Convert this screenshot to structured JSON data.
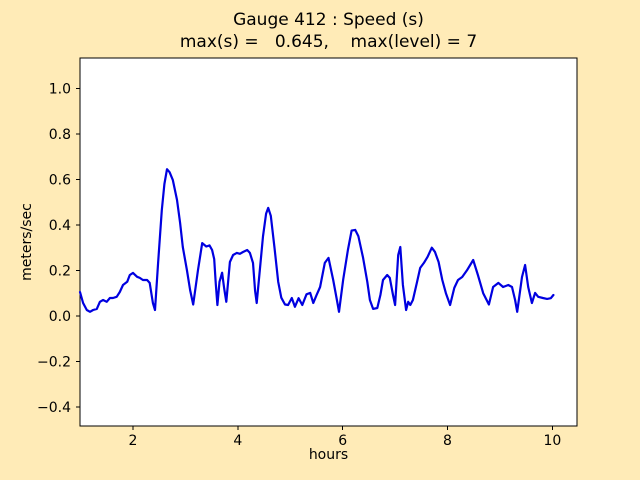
{
  "figure": {
    "facecolor": "#ffebb7",
    "axes_facecolor": "#ffffff",
    "spine_color": "#000000",
    "tick_color": "#000000",
    "text_color": "#000000"
  },
  "chart_data": {
    "type": "line",
    "title": "Gauge 412 : Speed (s)",
    "subtitle": "max(s) =   0.645,    max(level) = 7",
    "xlabel": "hours",
    "ylabel": "meters/sec",
    "xlim": [
      0.99,
      10.47
    ],
    "ylim": [
      -0.484,
      1.134
    ],
    "xticks": [
      2,
      4,
      6,
      8,
      10
    ],
    "xtick_labels": [
      "2",
      "4",
      "6",
      "8",
      "10"
    ],
    "yticks": [
      -0.4,
      -0.2,
      0.0,
      0.2,
      0.4,
      0.6,
      0.8,
      1.0
    ],
    "ytick_labels": [
      "−0.4",
      "−0.2",
      "0.0",
      "0.2",
      "0.4",
      "0.6",
      "0.8",
      "1.0"
    ],
    "grid": false,
    "legend": null,
    "line_color": "#0000e0",
    "line_width": 2.2,
    "annotations": {
      "max_s": 0.645,
      "max_level": 7
    },
    "series": [
      {
        "name": "speed",
        "points": [
          [
            0.99,
            0.105
          ],
          [
            1.05,
            0.057
          ],
          [
            1.12,
            0.026
          ],
          [
            1.18,
            0.018
          ],
          [
            1.24,
            0.026
          ],
          [
            1.31,
            0.031
          ],
          [
            1.37,
            0.062
          ],
          [
            1.43,
            0.07
          ],
          [
            1.5,
            0.062
          ],
          [
            1.56,
            0.079
          ],
          [
            1.62,
            0.079
          ],
          [
            1.69,
            0.084
          ],
          [
            1.75,
            0.105
          ],
          [
            1.81,
            0.136
          ],
          [
            1.89,
            0.15
          ],
          [
            1.94,
            0.18
          ],
          [
            2.0,
            0.189
          ],
          [
            2.08,
            0.172
          ],
          [
            2.13,
            0.167
          ],
          [
            2.19,
            0.158
          ],
          [
            2.27,
            0.158
          ],
          [
            2.32,
            0.145
          ],
          [
            2.38,
            0.057
          ],
          [
            2.42,
            0.026
          ],
          [
            2.48,
            0.233
          ],
          [
            2.55,
            0.465
          ],
          [
            2.6,
            0.58
          ],
          [
            2.65,
            0.645
          ],
          [
            2.7,
            0.632
          ],
          [
            2.76,
            0.598
          ],
          [
            2.84,
            0.51
          ],
          [
            2.9,
            0.409
          ],
          [
            2.95,
            0.303
          ],
          [
            3.03,
            0.202
          ],
          [
            3.09,
            0.114
          ],
          [
            3.15,
            0.05
          ],
          [
            3.24,
            0.202
          ],
          [
            3.32,
            0.32
          ],
          [
            3.4,
            0.305
          ],
          [
            3.46,
            0.31
          ],
          [
            3.51,
            0.29
          ],
          [
            3.55,
            0.25
          ],
          [
            3.58,
            0.14
          ],
          [
            3.61,
            0.048
          ],
          [
            3.65,
            0.15
          ],
          [
            3.7,
            0.19
          ],
          [
            3.74,
            0.12
          ],
          [
            3.78,
            0.062
          ],
          [
            3.85,
            0.237
          ],
          [
            3.91,
            0.268
          ],
          [
            3.98,
            0.277
          ],
          [
            4.04,
            0.273
          ],
          [
            4.1,
            0.281
          ],
          [
            4.18,
            0.29
          ],
          [
            4.23,
            0.277
          ],
          [
            4.29,
            0.233
          ],
          [
            4.33,
            0.11
          ],
          [
            4.36,
            0.057
          ],
          [
            4.42,
            0.2
          ],
          [
            4.48,
            0.35
          ],
          [
            4.54,
            0.45
          ],
          [
            4.58,
            0.475
          ],
          [
            4.63,
            0.44
          ],
          [
            4.7,
            0.3
          ],
          [
            4.77,
            0.15
          ],
          [
            4.83,
            0.08
          ],
          [
            4.9,
            0.05
          ],
          [
            4.96,
            0.048
          ],
          [
            5.03,
            0.079
          ],
          [
            5.09,
            0.04
          ],
          [
            5.16,
            0.078
          ],
          [
            5.23,
            0.048
          ],
          [
            5.31,
            0.095
          ],
          [
            5.38,
            0.101
          ],
          [
            5.44,
            0.057
          ],
          [
            5.5,
            0.09
          ],
          [
            5.57,
            0.127
          ],
          [
            5.66,
            0.233
          ],
          [
            5.73,
            0.255
          ],
          [
            5.82,
            0.158
          ],
          [
            5.89,
            0.07
          ],
          [
            5.93,
            0.018
          ],
          [
            6.01,
            0.16
          ],
          [
            6.1,
            0.29
          ],
          [
            6.17,
            0.375
          ],
          [
            6.24,
            0.378
          ],
          [
            6.3,
            0.35
          ],
          [
            6.39,
            0.255
          ],
          [
            6.47,
            0.15
          ],
          [
            6.52,
            0.07
          ],
          [
            6.58,
            0.031
          ],
          [
            6.66,
            0.035
          ],
          [
            6.72,
            0.092
          ],
          [
            6.77,
            0.158
          ],
          [
            6.85,
            0.18
          ],
          [
            6.9,
            0.167
          ],
          [
            6.96,
            0.092
          ],
          [
            7.0,
            0.048
          ],
          [
            7.06,
            0.268
          ],
          [
            7.1,
            0.303
          ],
          [
            7.15,
            0.136
          ],
          [
            7.21,
            0.026
          ],
          [
            7.25,
            0.062
          ],
          [
            7.29,
            0.048
          ],
          [
            7.34,
            0.07
          ],
          [
            7.42,
            0.15
          ],
          [
            7.48,
            0.211
          ],
          [
            7.55,
            0.233
          ],
          [
            7.62,
            0.26
          ],
          [
            7.7,
            0.3
          ],
          [
            7.76,
            0.282
          ],
          [
            7.83,
            0.237
          ],
          [
            7.9,
            0.158
          ],
          [
            7.97,
            0.1
          ],
          [
            8.05,
            0.048
          ],
          [
            8.13,
            0.123
          ],
          [
            8.2,
            0.158
          ],
          [
            8.28,
            0.171
          ],
          [
            8.37,
            0.2
          ],
          [
            8.49,
            0.246
          ],
          [
            8.58,
            0.18
          ],
          [
            8.68,
            0.1
          ],
          [
            8.79,
            0.05
          ],
          [
            8.87,
            0.127
          ],
          [
            8.97,
            0.145
          ],
          [
            9.06,
            0.127
          ],
          [
            9.16,
            0.136
          ],
          [
            9.23,
            0.127
          ],
          [
            9.29,
            0.07
          ],
          [
            9.33,
            0.018
          ],
          [
            9.42,
            0.171
          ],
          [
            9.48,
            0.224
          ],
          [
            9.54,
            0.127
          ],
          [
            9.61,
            0.057
          ],
          [
            9.67,
            0.101
          ],
          [
            9.73,
            0.084
          ],
          [
            9.82,
            0.079
          ],
          [
            9.9,
            0.075
          ],
          [
            9.97,
            0.078
          ],
          [
            10.02,
            0.092
          ]
        ]
      }
    ]
  }
}
